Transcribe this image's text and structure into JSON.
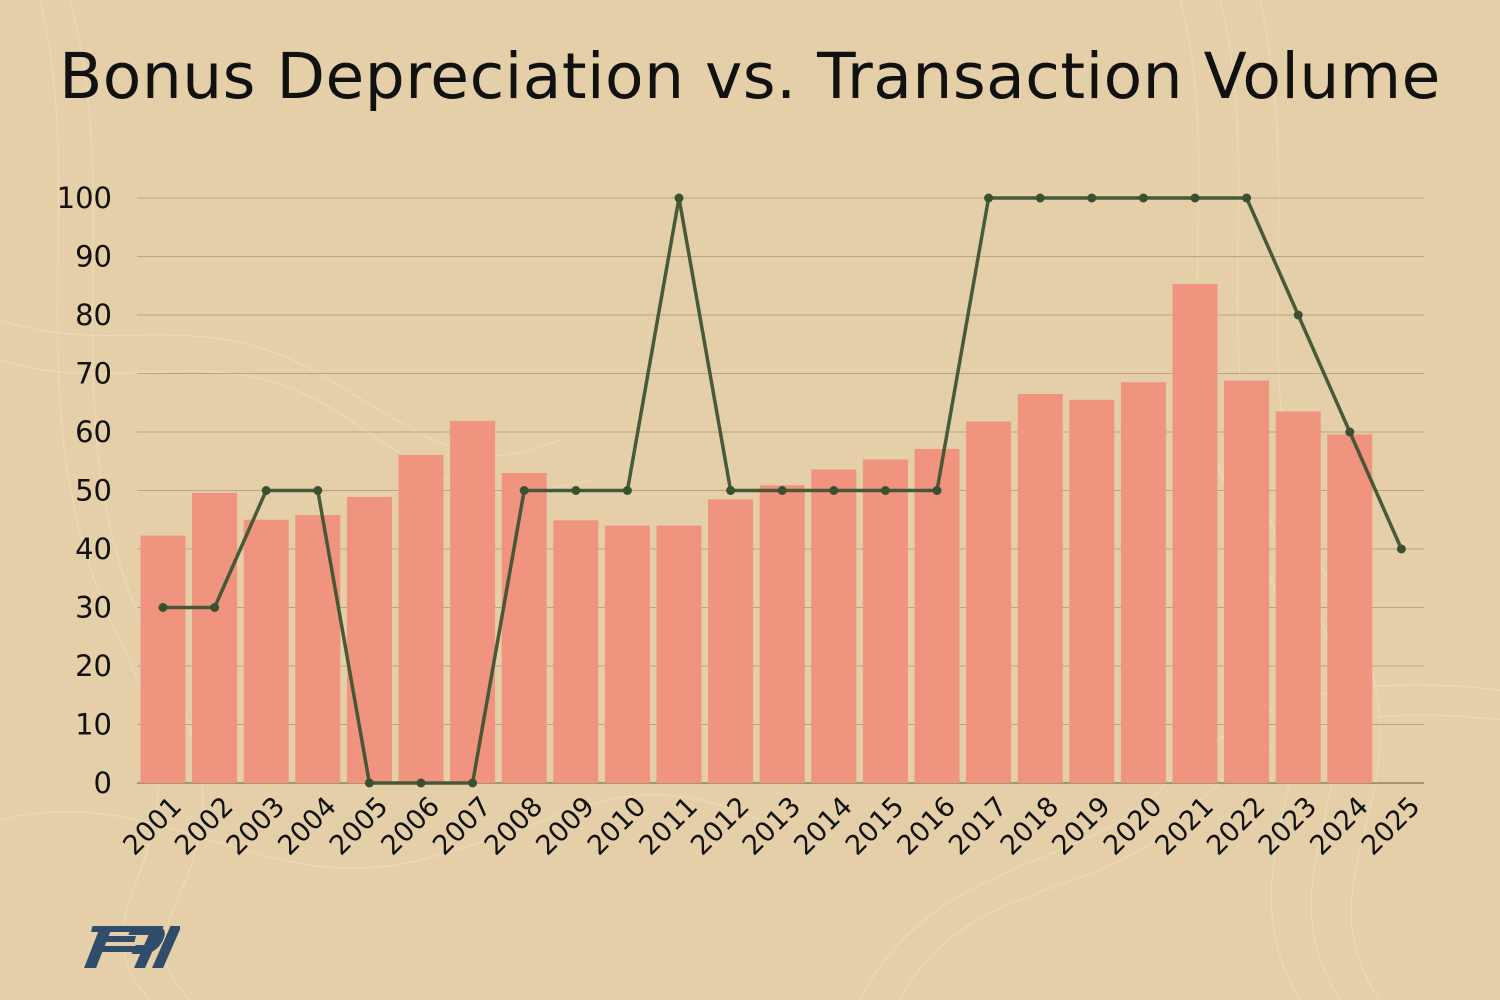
{
  "chart_data": {
    "type": "bar",
    "title": "Bonus Depreciation vs. Transaction Volume",
    "xlabel": "",
    "ylabel": "",
    "ylim": [
      0,
      100
    ],
    "yticks": [
      "0",
      "10",
      "20",
      "30",
      "40",
      "50",
      "60",
      "70",
      "80",
      "90",
      "100"
    ],
    "grid": true,
    "legend": "none",
    "categories": [
      "2001",
      "2002",
      "2003",
      "2004",
      "2005",
      "2006",
      "2007",
      "2008",
      "2009",
      "2010",
      "2011",
      "2012",
      "2013",
      "2014",
      "2015",
      "2016",
      "2017",
      "2018",
      "2019",
      "2020",
      "2021",
      "2022",
      "2023",
      "2024",
      "2025"
    ],
    "series": [
      {
        "type": "bar",
        "color": "#f0937f",
        "values": [
          42.3,
          49.6,
          45.0,
          45.8,
          48.9,
          56.1,
          61.9,
          53.0,
          44.9,
          44.0,
          44.0,
          48.5,
          50.9,
          53.6,
          55.3,
          57.1,
          61.8,
          66.5,
          65.5,
          68.5,
          85.3,
          68.8,
          63.5,
          59.6,
          null
        ]
      },
      {
        "type": "line",
        "color": "#3a5130",
        "values": [
          30,
          30,
          50,
          50,
          0,
          0,
          0,
          50,
          50,
          50,
          100,
          50,
          50,
          50,
          50,
          50,
          100,
          100,
          100,
          100,
          100,
          100,
          80,
          60,
          40
        ]
      }
    ]
  },
  "logo": {
    "text": "PJI",
    "color": "#2f4d6a"
  },
  "colors": {
    "background": "#e4cfa8",
    "grid": "#b9a583",
    "axis": "#8f8068"
  }
}
